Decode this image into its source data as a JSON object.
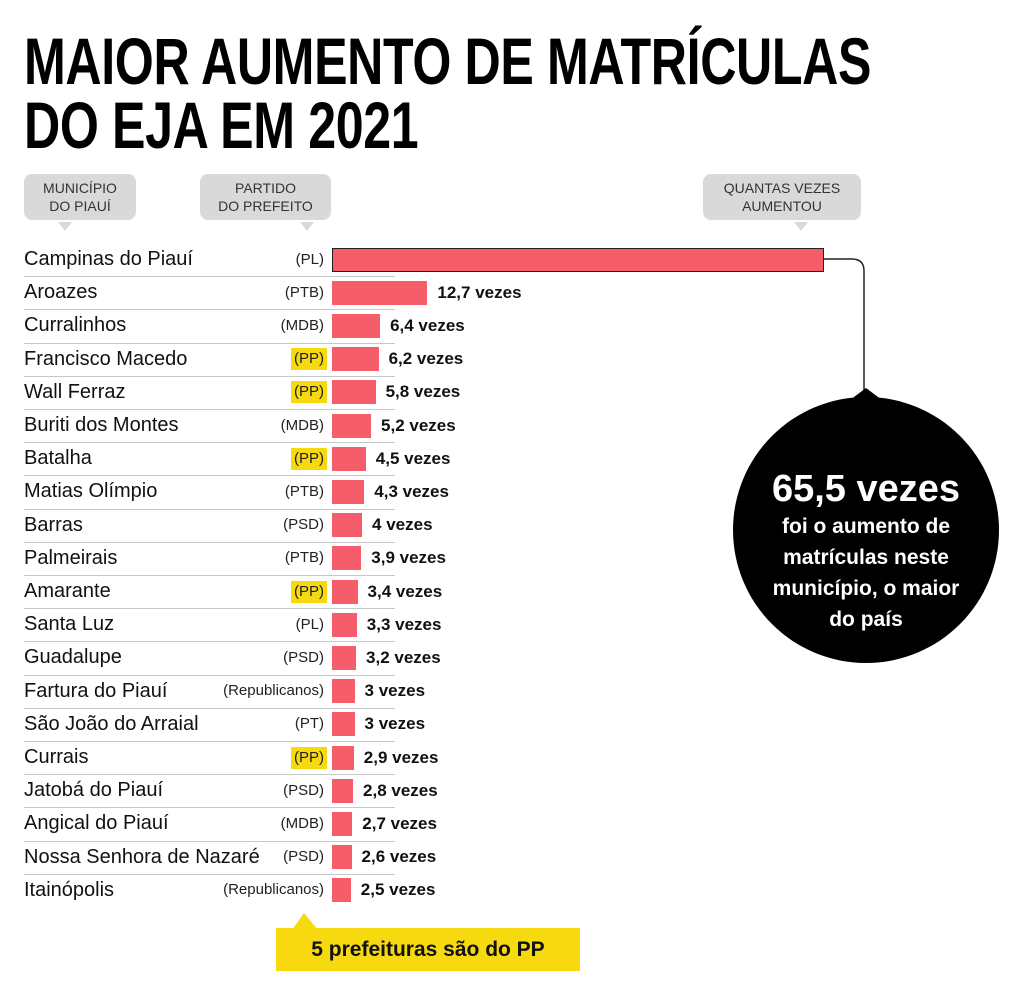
{
  "chart_data": {
    "type": "bar",
    "title": [
      "MAIOR AUMENTO DE MATRÍCULAS",
      "DO EJA EM 2021"
    ],
    "headers": {
      "category": [
        "MUNICÍPIO",
        "DO PIAUÍ"
      ],
      "party": [
        "PARTIDO",
        "DO PREFEITO"
      ],
      "value": [
        "QUANTAS VEZES",
        "AUMENTOU"
      ]
    },
    "categories": [
      "Campinas do Piauí",
      "Aroazes",
      "Curralinhos",
      "Francisco Macedo",
      "Wall Ferraz",
      "Buriti dos Montes",
      "Batalha",
      "Matias Olímpio",
      "Barras",
      "Palmeirais",
      "Amarante",
      "Santa Luz",
      "Guadalupe",
      "Fartura do Piauí",
      "São João do Arraial",
      "Currais",
      "Jatobá do Piauí",
      "Angical do Piauí",
      "Nossa Senhora de Nazaré",
      "Itainópolis"
    ],
    "parties": [
      "(PL)",
      "(PTB)",
      "(MDB)",
      "(PP)",
      "(PP)",
      "(MDB)",
      "(PP)",
      "(PTB)",
      "(PSD)",
      "(PTB)",
      "(PP)",
      "(PL)",
      "(PSD)",
      "(Republicanos)",
      "(PT)",
      "(PP)",
      "(PSD)",
      "(MDB)",
      "(PSD)",
      "(Republicanos)"
    ],
    "highlighted": [
      false,
      false,
      false,
      true,
      true,
      false,
      true,
      false,
      false,
      false,
      true,
      false,
      false,
      false,
      false,
      true,
      false,
      false,
      false,
      false
    ],
    "values": [
      65.5,
      12.7,
      6.4,
      6.2,
      5.8,
      5.2,
      4.5,
      4.3,
      4,
      3.9,
      3.4,
      3.3,
      3.2,
      3,
      3,
      2.9,
      2.8,
      2.7,
      2.6,
      2.5
    ],
    "value_labels": [
      "65,5 vezes",
      "12,7 vezes",
      "6,4 vezes",
      "6,2 vezes",
      "5,8 vezes",
      "5,2 vezes",
      "4,5 vezes",
      "4,3 vezes",
      "4 vezes",
      "3,9 vezes",
      "3,4 vezes",
      "3,3 vezes",
      "3,2 vezes",
      "3 vezes",
      "3 vezes",
      "2,9 vezes",
      "2,8 vezes",
      "2,7 vezes",
      "2,6 vezes",
      "2,5 vezes"
    ],
    "annotation": [
      "foi o aumento de",
      "matrículas neste",
      "município, o maior",
      "do país"
    ],
    "footnote": "5 prefeituras são do PP",
    "color": "#f55d6b",
    "highlight_color": "#f6d90f"
  }
}
